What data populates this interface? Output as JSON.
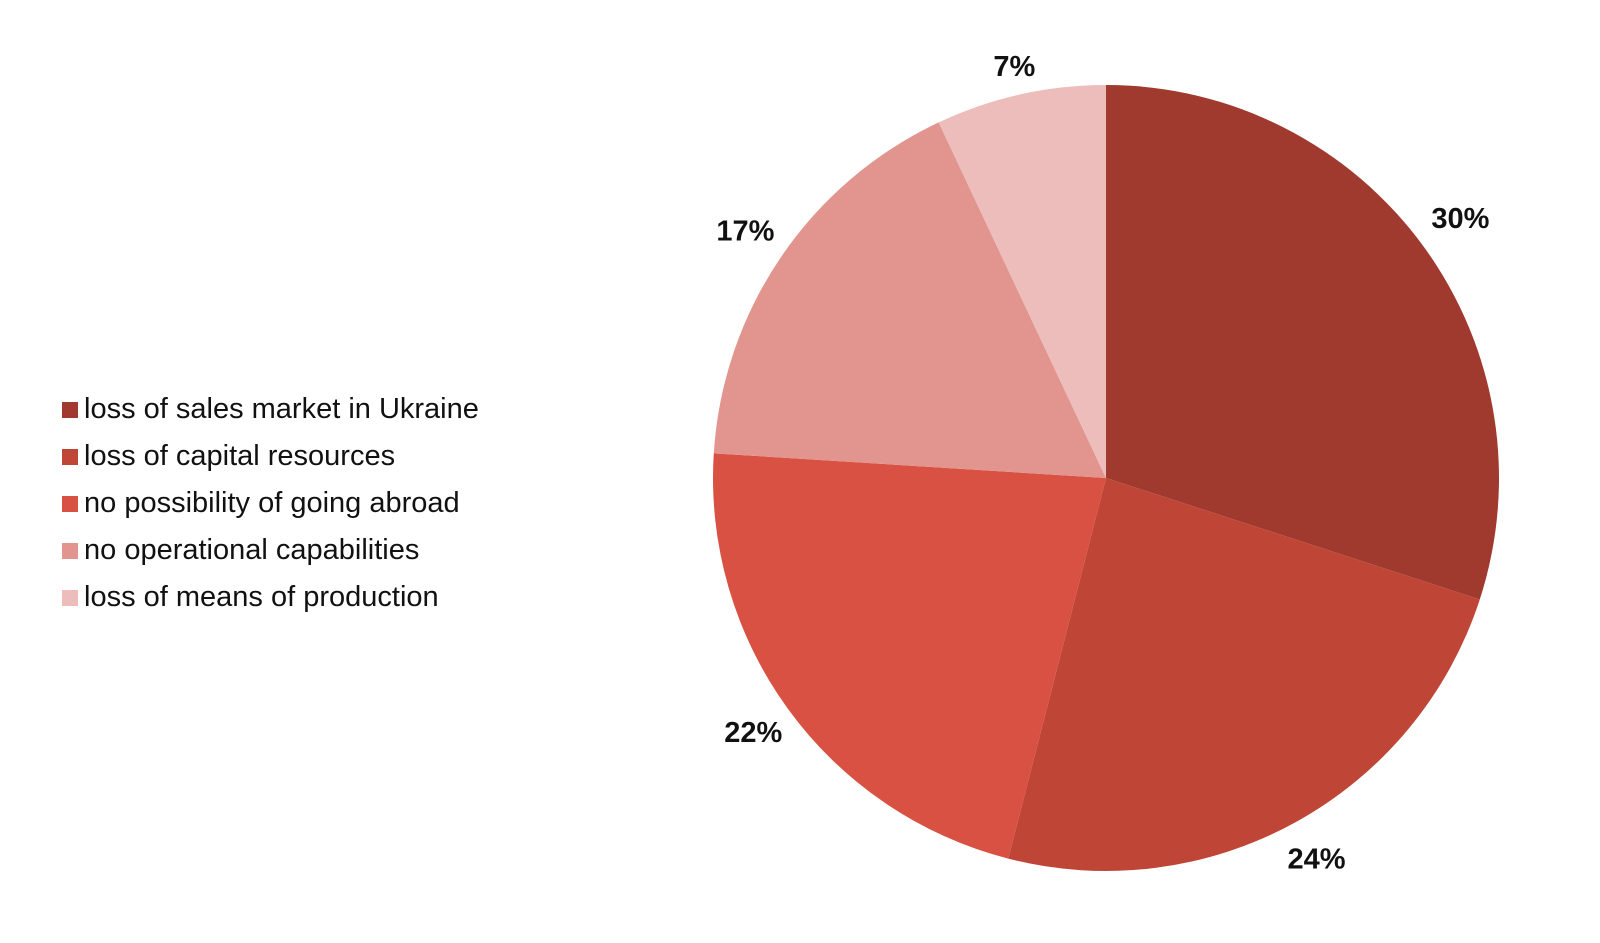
{
  "chart_data": {
    "type": "pie",
    "title": "",
    "legend_position": "left",
    "start_angle_deg": 0,
    "direction": "clockwise",
    "slices": [
      {
        "label": "loss of sales market in Ukraine",
        "value": 30,
        "display": "30%",
        "color": "#A13A2E"
      },
      {
        "label": "loss of capital resources",
        "value": 24,
        "display": "24%",
        "color": "#BF4536"
      },
      {
        "label": "no possibility of going abroad",
        "value": 22,
        "display": "22%",
        "color": "#D85142"
      },
      {
        "label": "no operational capabilities",
        "value": 17,
        "display": "17%",
        "color": "#E2948E"
      },
      {
        "label": "loss of means of production",
        "value": 7,
        "display": "7%",
        "color": "#ECBDBB"
      }
    ]
  }
}
